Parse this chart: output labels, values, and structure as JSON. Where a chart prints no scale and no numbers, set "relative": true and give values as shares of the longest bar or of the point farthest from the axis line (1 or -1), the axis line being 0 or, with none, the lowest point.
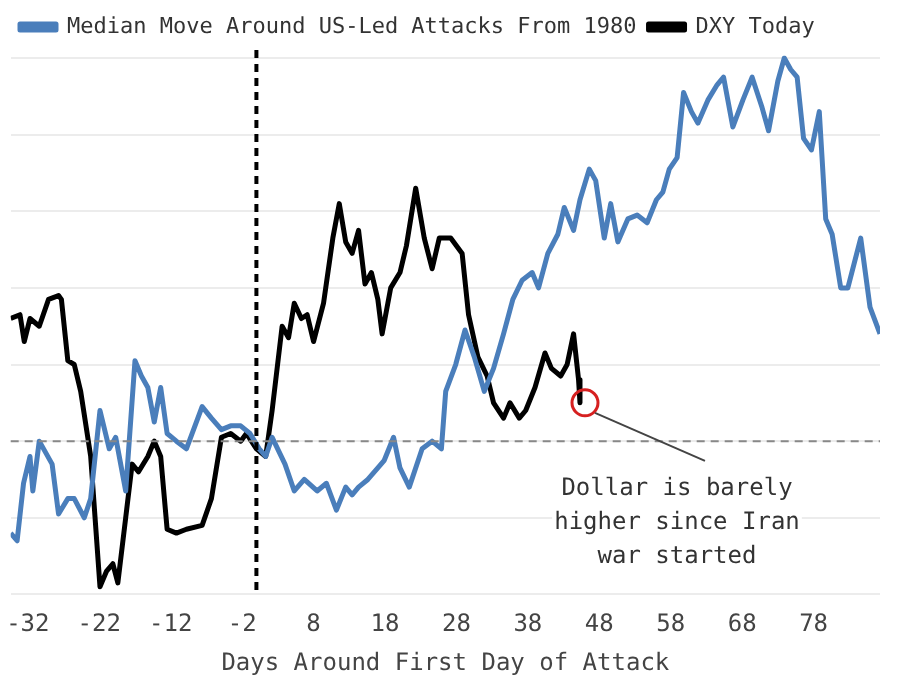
{
  "chart_data": {
    "type": "line",
    "relative": true,
    "xlabel": "Days Around First Day of Attack",
    "xlim": [
      -34.4,
      87.3
    ],
    "xticks": [
      -32,
      -22,
      -12,
      -2,
      8,
      18,
      28,
      38,
      48,
      58,
      68,
      78
    ],
    "grid": "y",
    "legend": "top left",
    "marker": "none",
    "line_style": "solid",
    "series": [
      {
        "name": "Median Move Around US-Led Attacks From 1980",
        "color": "#4a7ebb",
        "x": [
          -34.4,
          -33.5,
          -32.6,
          -31.7,
          -31.3,
          -30.4,
          -29.5,
          -28.6,
          -27.7,
          -26.4,
          -25.5,
          -24.1,
          -23.2,
          -21.9,
          -20.6,
          -19.7,
          -18.3,
          -17.0,
          -16.1,
          -15.2,
          -14.3,
          -13.4,
          -12.5,
          -11.2,
          -9.8,
          -7.6,
          -6.3,
          -4.9,
          -3.6,
          -2.2,
          -0.9,
          0.4,
          1.3,
          2.2,
          4.0,
          5.3,
          6.7,
          8.5,
          9.8,
          11.2,
          12.5,
          13.4,
          14.3,
          15.6,
          17.0,
          17.9,
          19.2,
          20.1,
          21.4,
          23.2,
          24.6,
          25.9,
          26.5,
          27.9,
          29.2,
          30.5,
          31.9,
          33.2,
          34.6,
          35.9,
          37.2,
          38.6,
          39.5,
          40.8,
          42.2,
          43.1,
          44.4,
          45.3,
          46.6,
          47.5,
          48.7,
          49.6,
          50.6,
          52.0,
          53.3,
          54.7,
          56.0,
          56.9,
          57.8,
          58.9,
          59.8,
          60.9,
          61.8,
          63.2,
          64.5,
          65.4,
          66.7,
          68.1,
          69.4,
          70.8,
          71.7,
          73.0,
          73.9,
          74.8,
          75.7,
          76.6,
          77.7,
          78.8,
          79.7,
          80.6,
          81.8,
          82.8,
          84.6,
          85.9,
          87.3
        ],
        "values": [
          -0.24,
          -0.26,
          -0.11,
          -0.04,
          -0.13,
          0.0,
          -0.03,
          -0.06,
          -0.19,
          -0.15,
          -0.15,
          -0.2,
          -0.15,
          0.08,
          -0.02,
          0.01,
          -0.13,
          0.21,
          0.17,
          0.14,
          0.05,
          0.14,
          0.02,
          0.0,
          -0.02,
          0.09,
          0.06,
          0.03,
          0.04,
          0.04,
          0.02,
          -0.02,
          -0.04,
          0.01,
          -0.06,
          -0.13,
          -0.1,
          -0.13,
          -0.11,
          -0.18,
          -0.12,
          -0.14,
          -0.12,
          -0.1,
          -0.07,
          -0.05,
          0.01,
          -0.07,
          -0.12,
          -0.02,
          0.0,
          -0.02,
          0.13,
          0.2,
          0.29,
          0.22,
          0.13,
          0.19,
          0.28,
          0.37,
          0.42,
          0.44,
          0.4,
          0.49,
          0.54,
          0.61,
          0.55,
          0.63,
          0.71,
          0.68,
          0.53,
          0.62,
          0.52,
          0.58,
          0.59,
          0.57,
          0.63,
          0.65,
          0.71,
          0.74,
          0.91,
          0.86,
          0.83,
          0.89,
          0.93,
          0.95,
          0.82,
          0.89,
          0.95,
          0.87,
          0.81,
          0.94,
          1.0,
          0.97,
          0.95,
          0.79,
          0.76,
          0.86,
          0.58,
          0.54,
          0.4,
          0.4,
          0.53,
          0.35,
          0.28
        ]
      },
      {
        "name": "DXY Today",
        "color": "#000000",
        "x": [
          -34.4,
          -33.1,
          -32.5,
          -31.7,
          -30.4,
          -29.1,
          -27.7,
          -27.3,
          -26.4,
          -25.5,
          -24.6,
          -23.2,
          -21.9,
          -21.0,
          -20.1,
          -19.4,
          -18.3,
          -17.4,
          -16.5,
          -15.2,
          -14.3,
          -13.4,
          -12.5,
          -11.2,
          -9.8,
          -7.6,
          -6.3,
          -4.9,
          -3.6,
          -2.2,
          -1.4,
          0.0,
          1.3,
          2.2,
          3.6,
          4.5,
          5.3,
          6.3,
          7.1,
          8.0,
          9.4,
          10.7,
          11.6,
          12.5,
          13.4,
          14.3,
          15.2,
          16.1,
          17.0,
          17.6,
          18.8,
          20.1,
          21.0,
          22.3,
          23.5,
          24.6,
          25.6,
          27.2,
          28.8,
          29.7,
          31.0,
          32.3,
          33.2,
          34.6,
          35.5,
          36.8,
          37.7,
          39.0,
          40.4,
          41.3,
          42.6,
          43.5,
          44.4,
          45.1,
          45.3
        ],
        "values": [
          0.32,
          0.33,
          0.26,
          0.32,
          0.3,
          0.37,
          0.38,
          0.37,
          0.21,
          0.2,
          0.13,
          -0.04,
          -0.38,
          -0.34,
          -0.32,
          -0.37,
          -0.2,
          -0.06,
          -0.08,
          -0.04,
          0.0,
          -0.04,
          -0.23,
          -0.24,
          -0.23,
          -0.22,
          -0.15,
          0.01,
          0.02,
          0.0,
          0.02,
          -0.02,
          -0.04,
          0.08,
          0.3,
          0.27,
          0.36,
          0.32,
          0.33,
          0.26,
          0.36,
          0.53,
          0.62,
          0.52,
          0.49,
          0.55,
          0.41,
          0.44,
          0.37,
          0.28,
          0.4,
          0.44,
          0.51,
          0.66,
          0.53,
          0.45,
          0.53,
          0.53,
          0.49,
          0.33,
          0.22,
          0.17,
          0.1,
          0.06,
          0.1,
          0.06,
          0.08,
          0.14,
          0.23,
          0.19,
          0.17,
          0.2,
          0.28,
          0.16,
          0.1
        ]
      }
    ],
    "ref_lines": [
      {
        "axis": "x",
        "value": 0,
        "color": "#000000",
        "line_style": "dashed"
      },
      {
        "axis": "y",
        "value": 0,
        "color": "#888888",
        "line_style": "dashed"
      }
    ],
    "annotations": [
      {
        "text": "Dollar is barely higher since Iran war started",
        "x": 46,
        "y": 0.1
      }
    ]
  }
}
